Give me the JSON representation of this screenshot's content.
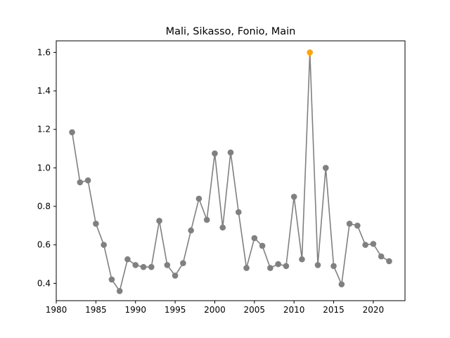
{
  "chart_data": {
    "type": "line",
    "title": "Mali, Sikasso, Fonio, Main",
    "xlabel": "",
    "ylabel": "",
    "xlim": [
      1980,
      2024
    ],
    "ylim": [
      0.31,
      1.66
    ],
    "x_ticks": [
      1980,
      1985,
      1990,
      1995,
      2000,
      2005,
      2010,
      2015,
      2020
    ],
    "y_ticks": [
      0.4,
      0.6,
      0.8,
      1.0,
      1.2,
      1.4,
      1.6
    ],
    "y_tick_labels": [
      "0.4",
      "0.6",
      "0.8",
      "1.0",
      "1.2",
      "1.4",
      "1.6"
    ],
    "grid": false,
    "line_color": "#808080",
    "highlight_color": "#ffa500",
    "highlight_x": 2012,
    "series": [
      {
        "x": [
          1982,
          1983,
          1984,
          1985,
          1986,
          1987,
          1988,
          1989,
          1990,
          1991,
          1992,
          1993,
          1994,
          1995,
          1996,
          1997,
          1998,
          1999,
          2000,
          2001,
          2002,
          2003,
          2004,
          2005,
          2006,
          2007,
          2008,
          2009,
          2010,
          2011,
          2012,
          2013,
          2014,
          2015,
          2016,
          2017,
          2018,
          2019,
          2020,
          2021,
          2022
        ],
        "y": [
          1.185,
          0.925,
          0.935,
          0.71,
          0.6,
          0.42,
          0.36,
          0.525,
          0.495,
          0.485,
          0.485,
          0.725,
          0.495,
          0.44,
          0.505,
          0.675,
          0.84,
          0.73,
          1.075,
          0.69,
          1.08,
          0.77,
          0.48,
          0.635,
          0.595,
          0.48,
          0.5,
          0.49,
          0.85,
          0.525,
          1.6,
          0.495,
          1.0,
          0.49,
          0.395,
          0.71,
          0.7,
          0.6,
          0.605,
          0.54,
          0.515
        ]
      }
    ]
  }
}
